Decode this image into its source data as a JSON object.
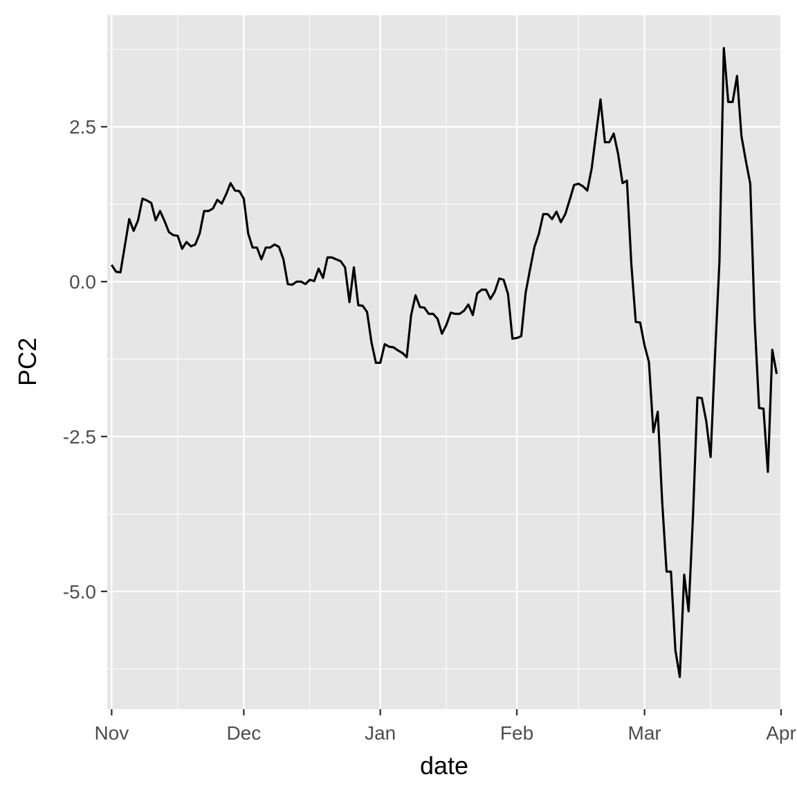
{
  "chart_data": {
    "type": "line",
    "title": "",
    "xlabel": "date",
    "ylabel": "PC2",
    "x_axis": {
      "kind": "date",
      "range": [
        "2019-10-31",
        "2020-04-01"
      ],
      "ticks": [
        {
          "date": "2019-11-01",
          "label": "Nov"
        },
        {
          "date": "2019-12-01",
          "label": "Dec"
        },
        {
          "date": "2020-01-01",
          "label": "Jan"
        },
        {
          "date": "2020-02-01",
          "label": "Feb"
        },
        {
          "date": "2020-03-01",
          "label": "Mar"
        },
        {
          "date": "2020-04-01",
          "label": "Apr"
        }
      ],
      "minor_gridlines": [
        "2019-11-16",
        "2019-12-16",
        "2020-01-16",
        "2020-02-15",
        "2020-03-16"
      ]
    },
    "y_axis": {
      "range": [
        -6.9,
        4.3
      ],
      "ticks": [
        {
          "value": 2.5,
          "label": "2.5"
        },
        {
          "value": 0.0,
          "label": "0.0"
        },
        {
          "value": -2.5,
          "label": "-2.5"
        },
        {
          "value": -5.0,
          "label": "-5.0"
        }
      ],
      "minor_gridlines": [
        3.75,
        1.25,
        -1.25,
        -3.75,
        -6.25
      ]
    },
    "grid": true,
    "legend": "none",
    "colors": {
      "panel": "#e6e6e6",
      "grid": "#ffffff",
      "line": "#000000"
    },
    "series": [
      {
        "x": [
          "2019-11-01",
          "2019-11-02",
          "2019-11-03",
          "2019-11-04",
          "2019-11-05",
          "2019-11-06",
          "2019-11-07",
          "2019-11-08",
          "2019-11-09",
          "2019-11-10",
          "2019-11-11",
          "2019-11-12",
          "2019-11-13",
          "2019-11-14",
          "2019-11-15",
          "2019-11-16",
          "2019-11-17",
          "2019-11-18",
          "2019-11-19",
          "2019-11-20",
          "2019-11-21",
          "2019-11-22",
          "2019-11-23",
          "2019-11-24",
          "2019-11-25",
          "2019-11-26",
          "2019-11-27",
          "2019-11-28",
          "2019-11-29",
          "2019-11-30",
          "2019-12-01",
          "2019-12-02",
          "2019-12-03",
          "2019-12-04",
          "2019-12-05",
          "2019-12-06",
          "2019-12-07",
          "2019-12-08",
          "2019-12-09",
          "2019-12-10",
          "2019-12-11",
          "2019-12-12",
          "2019-12-13",
          "2019-12-14",
          "2019-12-15",
          "2019-12-16",
          "2019-12-17",
          "2019-12-18",
          "2019-12-19",
          "2019-12-20",
          "2019-12-21",
          "2019-12-22",
          "2019-12-23",
          "2019-12-24",
          "2019-12-25",
          "2019-12-26",
          "2019-12-27",
          "2019-12-28",
          "2019-12-29",
          "2019-12-30",
          "2019-12-31",
          "2020-01-01",
          "2020-01-02",
          "2020-01-03",
          "2020-01-04",
          "2020-01-05",
          "2020-01-06",
          "2020-01-07",
          "2020-01-08",
          "2020-01-09",
          "2020-01-10",
          "2020-01-11",
          "2020-01-12",
          "2020-01-13",
          "2020-01-14",
          "2020-01-15",
          "2020-01-16",
          "2020-01-17",
          "2020-01-18",
          "2020-01-19",
          "2020-01-20",
          "2020-01-21",
          "2020-01-22",
          "2020-01-23",
          "2020-01-24",
          "2020-01-25",
          "2020-01-26",
          "2020-01-27",
          "2020-01-28",
          "2020-01-29",
          "2020-01-30",
          "2020-01-31",
          "2020-02-01",
          "2020-02-02",
          "2020-02-03",
          "2020-02-04",
          "2020-02-05",
          "2020-02-06",
          "2020-02-07",
          "2020-02-08",
          "2020-02-09",
          "2020-02-10",
          "2020-02-11",
          "2020-02-12",
          "2020-02-13",
          "2020-02-14",
          "2020-02-15",
          "2020-02-16",
          "2020-02-17",
          "2020-02-18",
          "2020-02-19",
          "2020-02-20",
          "2020-02-21",
          "2020-02-22",
          "2020-02-23",
          "2020-02-24",
          "2020-02-25",
          "2020-02-26",
          "2020-02-27",
          "2020-02-28",
          "2020-02-29",
          "2020-03-01",
          "2020-03-02",
          "2020-03-03",
          "2020-03-04",
          "2020-03-05",
          "2020-03-06",
          "2020-03-07",
          "2020-03-08",
          "2020-03-09",
          "2020-03-10",
          "2020-03-11",
          "2020-03-12",
          "2020-03-13",
          "2020-03-14",
          "2020-03-15",
          "2020-03-16",
          "2020-03-17",
          "2020-03-18",
          "2020-03-19",
          "2020-03-20",
          "2020-03-21",
          "2020-03-22",
          "2020-03-23",
          "2020-03-24",
          "2020-03-25",
          "2020-03-26",
          "2020-03-27",
          "2020-03-28",
          "2020-03-29",
          "2020-03-30",
          "2020-03-31"
        ],
        "y": [
          0.27,
          0.16,
          0.15,
          0.58,
          1.01,
          0.82,
          0.99,
          1.34,
          1.31,
          1.27,
          0.99,
          1.14,
          0.98,
          0.8,
          0.75,
          0.74,
          0.53,
          0.64,
          0.57,
          0.6,
          0.78,
          1.14,
          1.14,
          1.18,
          1.32,
          1.26,
          1.41,
          1.59,
          1.47,
          1.46,
          1.34,
          0.78,
          0.55,
          0.55,
          0.36,
          0.55,
          0.55,
          0.6,
          0.56,
          0.36,
          -0.04,
          -0.05,
          0.0,
          0.0,
          -0.04,
          0.03,
          0.01,
          0.21,
          0.06,
          0.39,
          0.39,
          0.36,
          0.33,
          0.23,
          -0.33,
          0.23,
          -0.38,
          -0.39,
          -0.49,
          -0.98,
          -1.31,
          -1.31,
          -1.01,
          -1.05,
          -1.06,
          -1.11,
          -1.15,
          -1.22,
          -0.54,
          -0.22,
          -0.41,
          -0.42,
          -0.52,
          -0.52,
          -0.6,
          -0.84,
          -0.7,
          -0.5,
          -0.52,
          -0.52,
          -0.47,
          -0.37,
          -0.54,
          -0.19,
          -0.13,
          -0.13,
          -0.28,
          -0.16,
          0.05,
          0.03,
          -0.2,
          -0.92,
          -0.91,
          -0.88,
          -0.18,
          0.2,
          0.56,
          0.77,
          1.09,
          1.09,
          1.01,
          1.13,
          0.96,
          1.09,
          1.32,
          1.56,
          1.58,
          1.54,
          1.47,
          1.83,
          2.39,
          2.94,
          2.25,
          2.25,
          2.39,
          2.06,
          1.59,
          1.63,
          0.28,
          -0.65,
          -0.66,
          -1.03,
          -1.3,
          -2.43,
          -2.1,
          -3.55,
          -4.68,
          -4.68,
          -5.95,
          -6.38,
          -4.73,
          -5.32,
          -3.78,
          -1.87,
          -1.88,
          -2.25,
          -2.83,
          -1.19,
          0.32,
          3.77,
          2.9,
          2.9,
          3.32,
          2.35,
          1.95,
          1.58,
          -0.63,
          -2.04,
          -2.05,
          -3.07,
          -1.1,
          -1.49
        ]
      }
    ]
  }
}
